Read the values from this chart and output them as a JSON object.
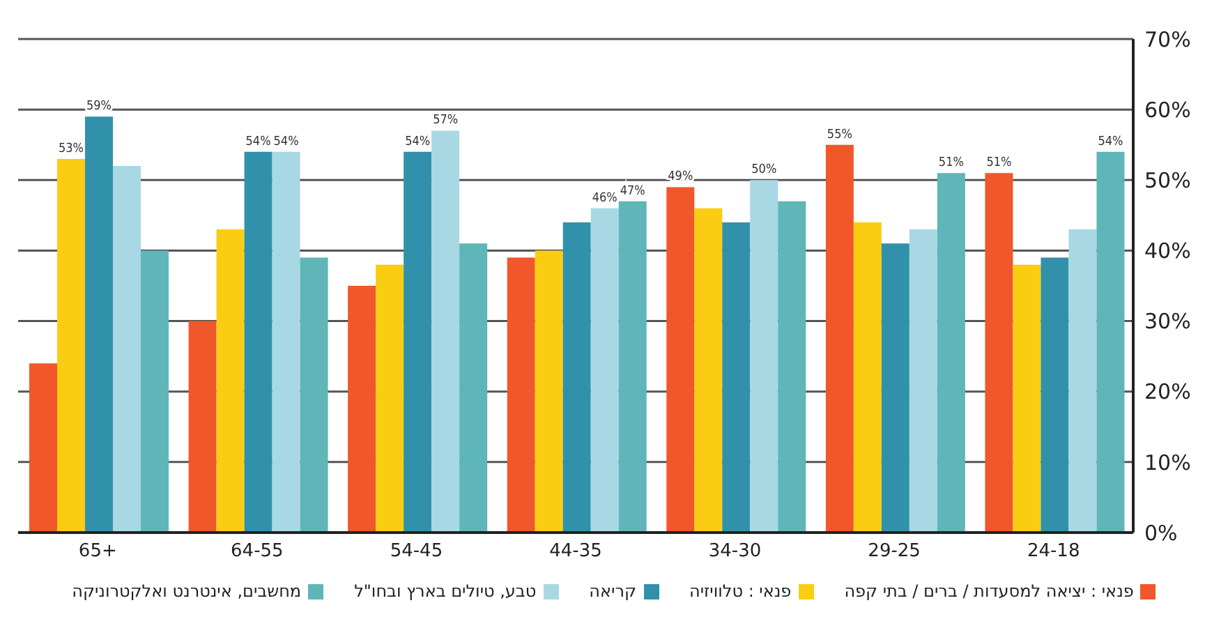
{
  "chart_data": {
    "type": "bar",
    "categories": [
      "65+",
      "64-55",
      "54-45",
      "44-35",
      "34-30",
      "29-25",
      "24-18"
    ],
    "series": [
      {
        "name": "פנאי : יציאה למסעדות / ברים / בתי קפה",
        "color": "#f0582b",
        "values": [
          24,
          30,
          35,
          39,
          49,
          55,
          51
        ],
        "value_labels": [
          null,
          null,
          null,
          null,
          "49%",
          "55%",
          "51%"
        ]
      },
      {
        "name": "פנאי : טלוויזיה",
        "color": "#facd12",
        "values": [
          53,
          43,
          38,
          40,
          46,
          44,
          38
        ],
        "value_labels": [
          "53%",
          null,
          null,
          null,
          null,
          null,
          null
        ]
      },
      {
        "name": "קריאה",
        "color": "#3291aa",
        "values": [
          59,
          54,
          54,
          44,
          44,
          41,
          39
        ],
        "value_labels": [
          "59%",
          "54%",
          "54%",
          null,
          null,
          null,
          null
        ]
      },
      {
        "name": "טבע, טיולים בארץ ובחו\"ל",
        "color": "#a8d8e4",
        "values": [
          52,
          54,
          57,
          46,
          50,
          43,
          43
        ],
        "value_labels": [
          null,
          "54%",
          "57%",
          "46%",
          "50%",
          null,
          null
        ]
      },
      {
        "name": "מחשבים, אינטרנט ואלקטרוניקה",
        "color": "#5eb6b8",
        "values": [
          40,
          39,
          41,
          47,
          47,
          51,
          54
        ],
        "value_labels": [
          null,
          null,
          null,
          "47%",
          null,
          "51%",
          "54%"
        ]
      }
    ],
    "ylim": [
      0,
      70
    ],
    "yticks": [
      {
        "value": 0,
        "label": "0%"
      },
      {
        "value": 10,
        "label": "10%"
      },
      {
        "value": 20,
        "label": "20%"
      },
      {
        "value": 30,
        "label": "30%"
      },
      {
        "value": 40,
        "label": "40%"
      },
      {
        "value": 50,
        "label": "50%"
      },
      {
        "value": 60,
        "label": "60%"
      },
      {
        "value": 70,
        "label": "70%"
      }
    ],
    "grid": "y",
    "legend": "bottom"
  }
}
